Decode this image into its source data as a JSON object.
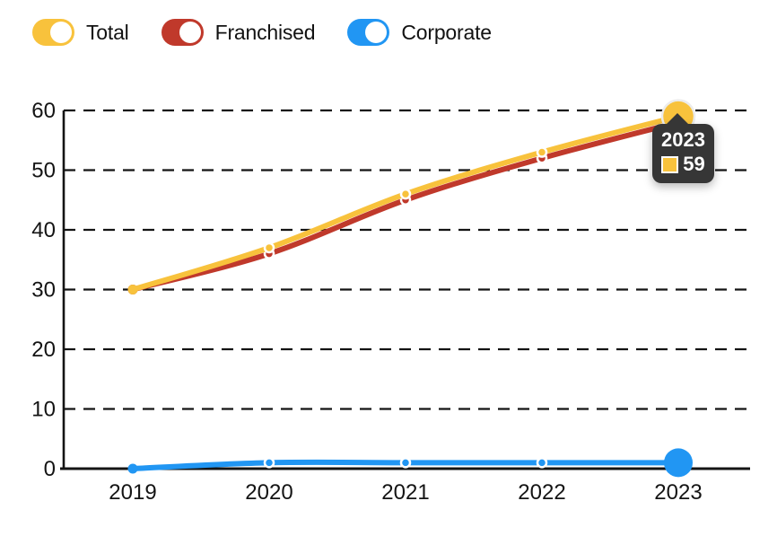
{
  "legend": {
    "items": [
      {
        "label": "Total",
        "color": "#F8C23C",
        "state": "on"
      },
      {
        "label": "Franchised",
        "color": "#C0392B",
        "state": "on"
      },
      {
        "label": "Corporate",
        "color": "#2196F3",
        "state": "on"
      }
    ]
  },
  "tooltip": {
    "title": "2023",
    "value": "59",
    "series": "Total",
    "swatch_color": "#F8C23C",
    "bg_color": "#363636"
  },
  "chart_data": {
    "type": "line",
    "x": [
      "2019",
      "2020",
      "2021",
      "2022",
      "2023"
    ],
    "series": [
      {
        "name": "Total",
        "color": "#F8C23C",
        "values": [
          30,
          37,
          46,
          53,
          59
        ]
      },
      {
        "name": "Franchised",
        "color": "#C0392B",
        "values": [
          30,
          36,
          45,
          52,
          58
        ]
      },
      {
        "name": "Corporate",
        "color": "#2196F3",
        "values": [
          0,
          1,
          1,
          1,
          1
        ]
      }
    ],
    "ylim": [
      0,
      60
    ],
    "yticks": [
      0,
      10,
      20,
      30,
      40,
      50,
      60
    ],
    "grid": "horizontal-dashed",
    "legend_position": "top-left",
    "highlighted_x": "2023",
    "axis_color": "#141414",
    "smooth": true
  }
}
